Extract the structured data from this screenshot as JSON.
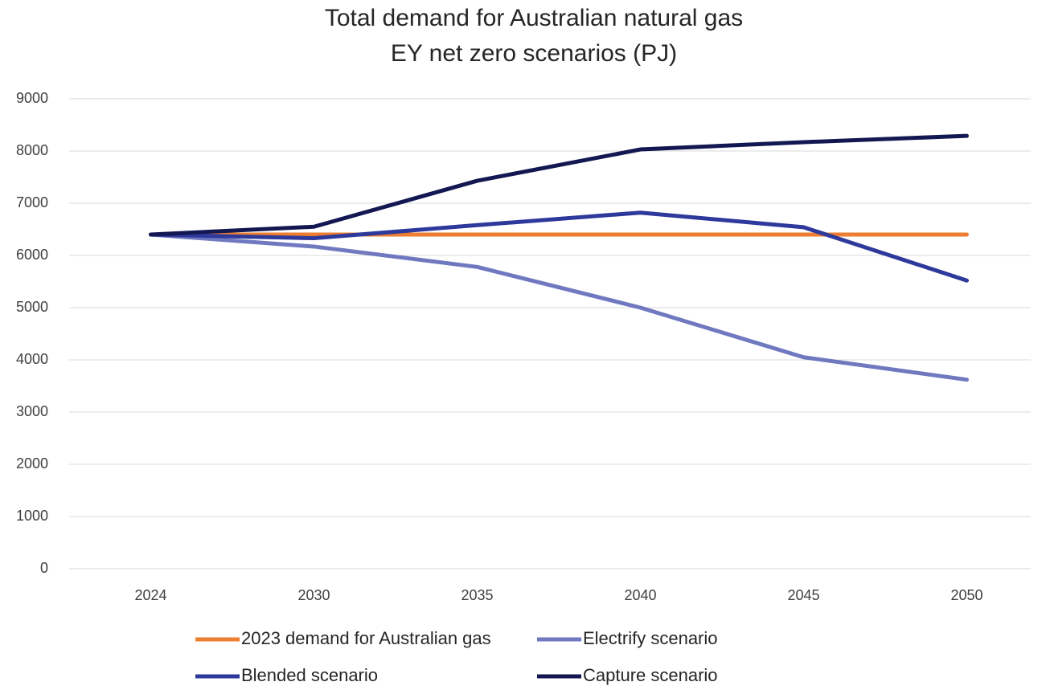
{
  "chart_data": {
    "type": "line",
    "title": "Total demand for Australian natural gas",
    "subtitle": "EY net zero scenarios (PJ)",
    "categories": [
      "2024",
      "2030",
      "2035",
      "2040",
      "2045",
      "2050"
    ],
    "series": [
      {
        "name": "2023 demand for Australian gas",
        "color": "#ed7d31",
        "values": [
          6400,
          6400,
          6400,
          6400,
          6400,
          6400
        ]
      },
      {
        "name": "Electrify scenario",
        "color": "#7079c0",
        "values": [
          6400,
          6170,
          5780,
          5000,
          4050,
          3620
        ]
      },
      {
        "name": "Blended scenario",
        "color": "#2e3a9b",
        "values": [
          6400,
          6330,
          6580,
          6820,
          6540,
          5520
        ]
      },
      {
        "name": "Capture scenario",
        "color": "#141852",
        "values": [
          6400,
          6550,
          7430,
          8030,
          8170,
          8290
        ]
      }
    ],
    "ylim": [
      0,
      9000
    ],
    "yticks": [
      0,
      1000,
      2000,
      3000,
      4000,
      5000,
      6000,
      7000,
      8000,
      9000
    ],
    "grid": true,
    "legend": "bottom"
  }
}
